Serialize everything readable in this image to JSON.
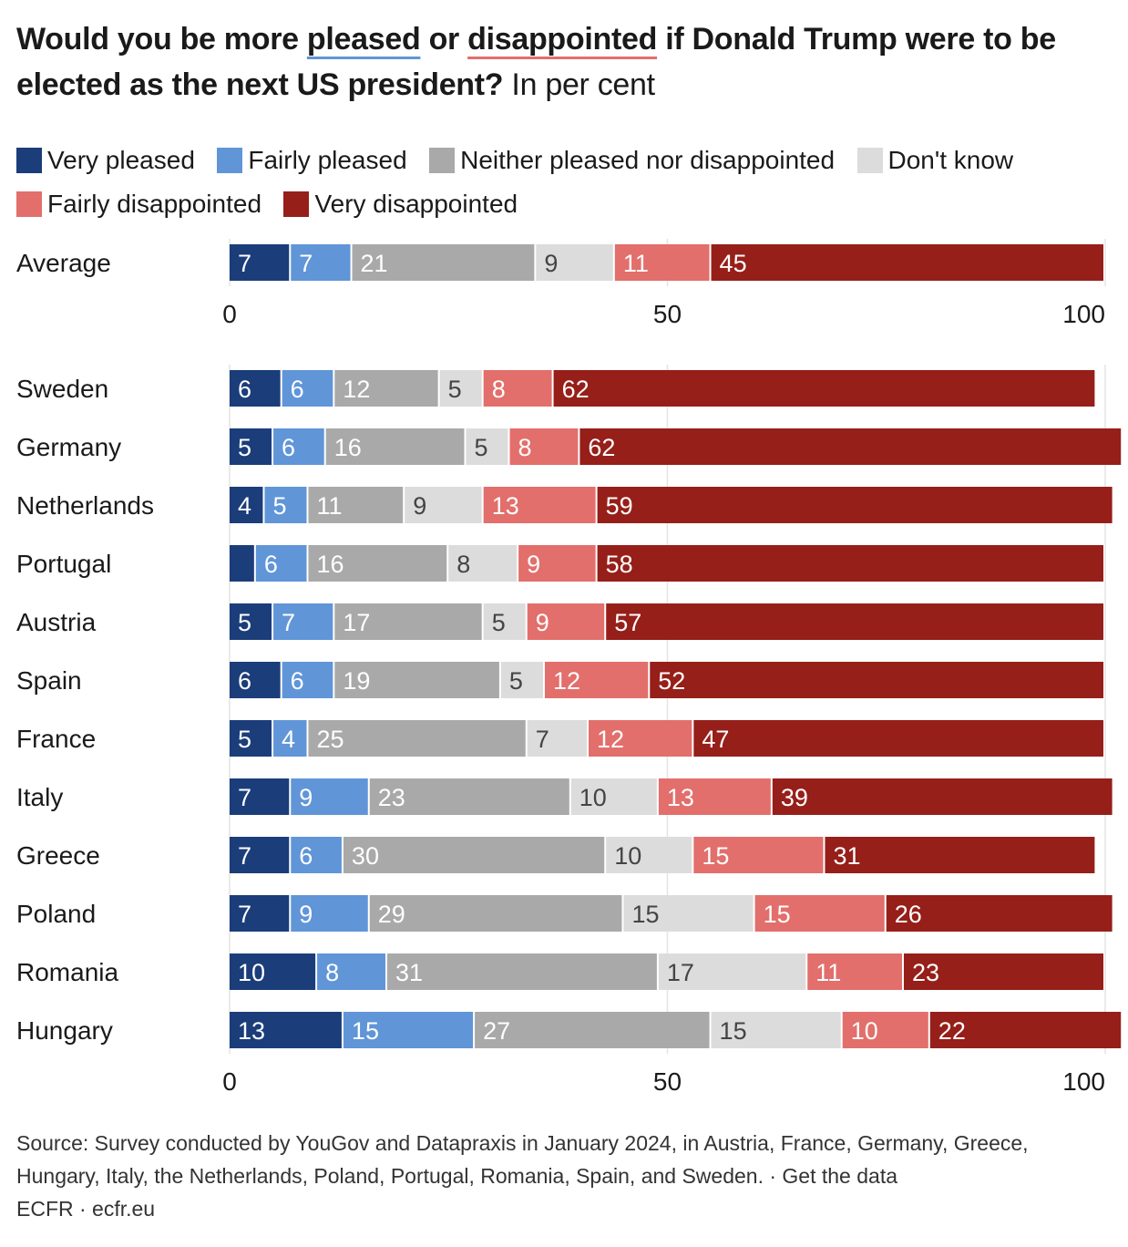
{
  "title": {
    "part1": "Would you be more ",
    "pleased": "pleased",
    "part2": " or ",
    "disappointed": "disappointed",
    "part3": " if Donald Trump were to be elected as the next US president?",
    "subtitle": " In per cent"
  },
  "colors": {
    "very_pleased": "#1b3d7a",
    "fairly_pleased": "#6095d8",
    "neither": "#a9a9a9",
    "dont_know": "#dcdcdc",
    "fairly_disappointed": "#e26f6b",
    "very_disappointed": "#961f19",
    "pleased_underline": "#6095d8",
    "disappointed_underline": "#e26f6b"
  },
  "chart_data": {
    "type": "bar",
    "orientation": "horizontal",
    "stacked": true,
    "xlim": [
      0,
      100
    ],
    "xticks": [
      "0",
      "50",
      "100"
    ],
    "grid": true,
    "legend_position": "top",
    "series": [
      {
        "name": "Very pleased",
        "key": "very_pleased"
      },
      {
        "name": "Fairly pleased",
        "key": "fairly_pleased"
      },
      {
        "name": "Neither pleased nor disappointed",
        "key": "neither"
      },
      {
        "name": "Don't know",
        "key": "dont_know"
      },
      {
        "name": "Fairly disappointed",
        "key": "fairly_disappointed"
      },
      {
        "name": "Very disappointed",
        "key": "very_disappointed"
      }
    ],
    "groups": [
      {
        "rows": [
          {
            "category": "Average",
            "values": [
              7,
              7,
              21,
              9,
              11,
              45
            ]
          }
        ]
      },
      {
        "rows": [
          {
            "category": "Sweden",
            "values": [
              6,
              6,
              12,
              5,
              8,
              62
            ]
          },
          {
            "category": "Germany",
            "values": [
              5,
              6,
              16,
              5,
              8,
              62
            ]
          },
          {
            "category": "Netherlands",
            "values": [
              4,
              5,
              11,
              9,
              13,
              59
            ]
          },
          {
            "category": "Portugal",
            "values": [
              3,
              6,
              16,
              8,
              9,
              58
            ],
            "hidden_labels": [
              0
            ]
          },
          {
            "category": "Austria",
            "values": [
              5,
              7,
              17,
              5,
              9,
              57
            ]
          },
          {
            "category": "Spain",
            "values": [
              6,
              6,
              19,
              5,
              12,
              52
            ]
          },
          {
            "category": "France",
            "values": [
              5,
              4,
              25,
              7,
              12,
              47
            ]
          },
          {
            "category": "Italy",
            "values": [
              7,
              9,
              23,
              10,
              13,
              39
            ]
          },
          {
            "category": "Greece",
            "values": [
              7,
              6,
              30,
              10,
              15,
              31
            ]
          },
          {
            "category": "Poland",
            "values": [
              7,
              9,
              29,
              15,
              15,
              26
            ]
          },
          {
            "category": "Romania",
            "values": [
              10,
              8,
              31,
              17,
              11,
              23
            ]
          },
          {
            "category": "Hungary",
            "values": [
              13,
              15,
              27,
              15,
              10,
              22
            ]
          }
        ]
      }
    ]
  },
  "footer": {
    "source": "Source: Survey conducted by YouGov and Datapraxis in January 2024, in Austria, France, Germany, Greece, Hungary, Italy, the Netherlands, Poland, Portugal, Romania, Spain, and Sweden. · Get the data",
    "credit": "ECFR · ecfr.eu"
  }
}
